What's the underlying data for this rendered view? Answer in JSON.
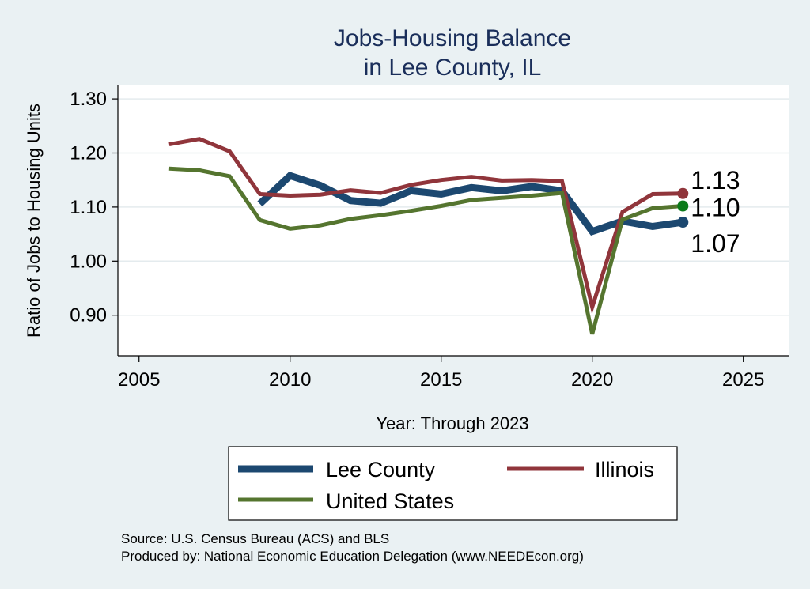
{
  "chart_data": {
    "type": "line",
    "title_line1": "Jobs-Housing Balance",
    "title_line2": "in Lee County, IL",
    "xlabel": "Year: Through 2023",
    "ylabel": "Ratio of Jobs to Housing Units",
    "xlim": [
      2004.3,
      2026.5
    ],
    "ylim": [
      0.825,
      1.325
    ],
    "x_ticks": [
      2005,
      2010,
      2015,
      2020,
      2025
    ],
    "y_ticks": [
      {
        "value": 0.9,
        "label": "0.90"
      },
      {
        "value": 1.0,
        "label": "1.00"
      },
      {
        "value": 1.1,
        "label": "1.10"
      },
      {
        "value": 1.2,
        "label": "1.20"
      },
      {
        "value": 1.3,
        "label": "1.30"
      }
    ],
    "grid": true,
    "legend_position": "bottom",
    "series": [
      {
        "key": "lee",
        "name": "Lee County",
        "color": "#1c4870",
        "x": [
          2009,
          2010,
          2011,
          2012,
          2013,
          2014,
          2015,
          2016,
          2017,
          2018,
          2019,
          2020,
          2021,
          2022,
          2023
        ],
        "y": [
          1.106,
          1.158,
          1.14,
          1.112,
          1.107,
          1.13,
          1.124,
          1.136,
          1.13,
          1.138,
          1.13,
          1.055,
          1.074,
          1.064,
          1.072
        ],
        "end_label": "1.07"
      },
      {
        "key": "il",
        "name": "Illinois",
        "color": "#90353b",
        "x": [
          2006,
          2007,
          2008,
          2009,
          2010,
          2011,
          2012,
          2013,
          2014,
          2015,
          2016,
          2017,
          2018,
          2019,
          2020,
          2021,
          2022,
          2023
        ],
        "y": [
          1.216,
          1.226,
          1.203,
          1.124,
          1.121,
          1.123,
          1.131,
          1.126,
          1.141,
          1.15,
          1.156,
          1.149,
          1.15,
          1.148,
          0.915,
          1.091,
          1.124,
          1.125
        ],
        "end_label": "1.13"
      },
      {
        "key": "us",
        "name": "United States",
        "color": "#55752f",
        "x": [
          2006,
          2007,
          2008,
          2009,
          2010,
          2011,
          2012,
          2013,
          2014,
          2015,
          2016,
          2017,
          2018,
          2019,
          2020,
          2021,
          2022,
          2023
        ],
        "y": [
          1.171,
          1.168,
          1.157,
          1.076,
          1.06,
          1.066,
          1.078,
          1.085,
          1.093,
          1.102,
          1.113,
          1.117,
          1.121,
          1.126,
          0.865,
          1.077,
          1.098,
          1.102
        ],
        "end_label": "1.10",
        "end_marker_color": "#0b7a1a"
      }
    ],
    "notes": [
      "Source: U.S. Census Bureau (ACS) and BLS",
      "Produced by: National Economic Education Delegation (www.NEEDEcon.org)"
    ]
  }
}
